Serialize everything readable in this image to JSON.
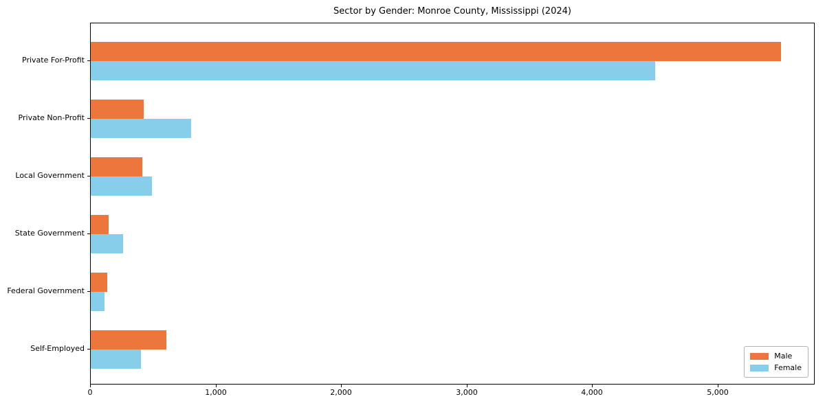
{
  "chart_data": {
    "type": "bar",
    "orientation": "horizontal",
    "title": "Sector by Gender: Monroe County, Mississippi (2024)",
    "categories": [
      "Private For-Profit",
      "Private Non-Profit",
      "Local Government",
      "State Government",
      "Federal Government",
      "Self-Employed"
    ],
    "series": [
      {
        "name": "Male",
        "color": "#EC763C",
        "values": [
          5500,
          420,
          410,
          140,
          130,
          600
        ]
      },
      {
        "name": "Female",
        "color": "#87CEEB",
        "values": [
          4500,
          800,
          490,
          260,
          110,
          400
        ]
      }
    ],
    "xlim": [
      0,
      5775
    ],
    "x_tick_values": [
      0,
      1000,
      2000,
      3000,
      4000,
      5000
    ],
    "x_tick_labels": [
      "0",
      "1,000",
      "2,000",
      "3,000",
      "4,000",
      "5,000"
    ],
    "grid": false,
    "legend": {
      "position": "lower right",
      "entries": [
        "Male",
        "Female"
      ]
    },
    "colors": {
      "spine": "#000000",
      "background": "#ffffff"
    }
  }
}
